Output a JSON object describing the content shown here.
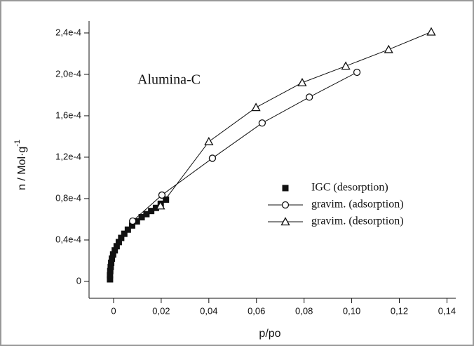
{
  "chart_data": {
    "type": "scatter",
    "annotation": "Alumina-C",
    "xlabel": "p/po",
    "ylabel": "n / Mol·g",
    "ylabel_sup": "-1",
    "xlim": [
      -0.0103,
      0.1437
    ],
    "ylim": [
      -1.63e-05,
      0.0002515
    ],
    "xticks": [
      {
        "value": 0,
        "label": "0"
      },
      {
        "value": 0.02,
        "label": "0,02"
      },
      {
        "value": 0.04,
        "label": "0,04"
      },
      {
        "value": 0.06,
        "label": "0,06"
      },
      {
        "value": 0.08,
        "label": "0,08"
      },
      {
        "value": 0.1,
        "label": "0,10"
      },
      {
        "value": 0.12,
        "label": "0,12"
      },
      {
        "value": 0.14,
        "label": "0,14"
      }
    ],
    "yticks": [
      {
        "value": 0,
        "label": "0"
      },
      {
        "value": 4e-05,
        "label": "0,4e-4"
      },
      {
        "value": 8e-05,
        "label": "0,8e-4"
      },
      {
        "value": 0.00012,
        "label": "1,2e-4"
      },
      {
        "value": 0.00016,
        "label": "1,6e-4"
      },
      {
        "value": 0.0002,
        "label": "2,0e-4"
      },
      {
        "value": 0.00024,
        "label": "2,4e-4"
      }
    ],
    "series": [
      {
        "name": "IGC (desorption)",
        "color": "#111111",
        "marker": "square",
        "line": false,
        "x": [
          -0.0015,
          -0.0015,
          -0.0014,
          -0.0012,
          -0.001,
          -0.0007,
          -0.0002,
          0.0005,
          0.0013,
          0.0022,
          0.0032,
          0.0045,
          0.006,
          0.0078,
          0.0098,
          0.0118,
          0.0138,
          0.0158,
          0.0178,
          0.0198,
          0.022
        ],
        "values": [
          2e-06,
          6e-06,
          1e-05,
          1.4e-05,
          1.8e-05,
          2.2e-05,
          2.6e-05,
          3e-05,
          3.4e-05,
          3.8e-05,
          4.2e-05,
          4.6e-05,
          5e-05,
          5.4e-05,
          5.8e-05,
          6.2e-05,
          6.5e-05,
          6.8e-05,
          7.1e-05,
          7.5e-05,
          7.9e-05
        ]
      },
      {
        "name": "gravim. (adsorption)",
        "color": "#111111",
        "marker": "circle",
        "line": true,
        "x": [
          0.008,
          0.0203,
          0.0415,
          0.0624,
          0.0822,
          0.1022
        ],
        "values": [
          5.83e-05,
          8.34e-05,
          0.000119,
          0.000153,
          0.000178,
          0.000202
        ]
      },
      {
        "name": "gravim. (desorption)",
        "color": "#111111",
        "marker": "triangle",
        "line": true,
        "x": [
          0.0197,
          0.04,
          0.0598,
          0.0792,
          0.0975,
          0.1155,
          0.1334
        ],
        "values": [
          7.3e-05,
          0.000135,
          0.000168,
          0.000192,
          0.000208,
          0.000224,
          0.000241
        ]
      }
    ]
  }
}
